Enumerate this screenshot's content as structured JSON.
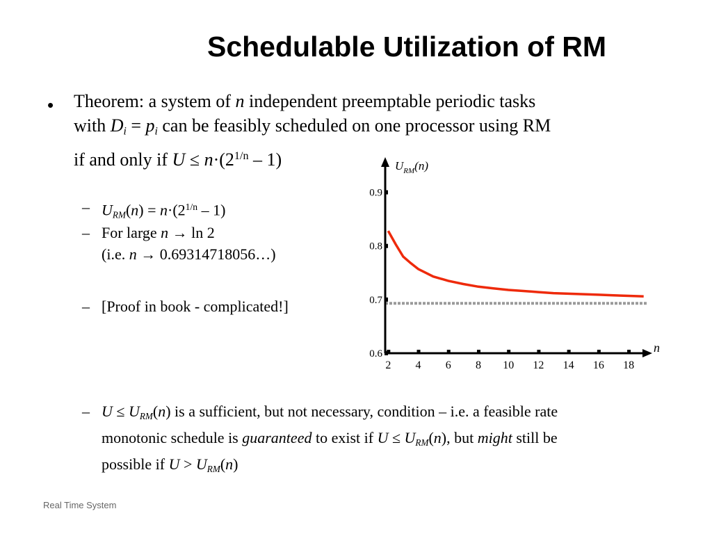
{
  "slide": {
    "title": "Schedulable Utilization of RM",
    "footer": "Real Time System"
  },
  "theorem": {
    "t1": "Theorem: a system of ",
    "n": "n",
    "t2": " independent preemptable periodic tasks",
    "t3": "with ",
    "d": "D",
    "i1": "i",
    "eq": " = ",
    "p": "p",
    "i2": "i",
    "t4": " can be feasibly scheduled on one processor using RM",
    "t5": "if and only if ",
    "u": "U",
    "t6": " ≤ ",
    "n2": "n",
    "t7": "·(2",
    "exp": "1/n",
    "t8": " – 1)"
  },
  "items": {
    "formula": {
      "u": "U",
      "sub": "RM",
      "a": "(",
      "n": "n",
      "b": ") = ",
      "n2": "n",
      "c": "·(2",
      "exp": "1/n",
      "d": " – 1)"
    },
    "large": {
      "a": "For large ",
      "n": "n",
      "b": " → ln 2"
    },
    "large2": {
      "a": "(i.e. ",
      "n": "n",
      "b": " → 0.69314718056…)"
    },
    "proof": "[Proof in book - complicated!]",
    "sufficient": {
      "u1": "U",
      "a": " ≤ ",
      "u2": "U",
      "s1": "RM",
      "b": "(",
      "n1": "n",
      "c": ") is a sufficient, but not necessary, condition – i.e. a feasible rate",
      "d": "monotonic schedule is ",
      "g": "guaranteed",
      "e": " to exist if ",
      "u3": "U",
      "f": " ≤ ",
      "u4": "U",
      "s2": "RM",
      "h": "(",
      "n2": "n",
      "i": "), but ",
      "m": "might",
      "j": " still be",
      "k": "possible if ",
      "u5": "U",
      "l": " > ",
      "u6": "U",
      "s3": "RM",
      "o": "(",
      "n3": "n",
      "p": ")"
    }
  },
  "chart_data": {
    "type": "line",
    "ylabel_main": "U",
    "ylabel_sub": "RM",
    "ylabel_tail": "(n)",
    "xlabel": "n",
    "x_ticks": [
      "2",
      "4",
      "6",
      "8",
      "10",
      "12",
      "14",
      "16",
      "18"
    ],
    "y_ticks": [
      "0.6",
      "0.7",
      "0.8",
      "0.9"
    ],
    "xlim": [
      1.8,
      19.2
    ],
    "ylim": [
      0.6,
      0.95
    ],
    "series": [
      {
        "color": "#ee2a0b",
        "style": "solid",
        "x": [
          2,
          2.5,
          3,
          3.5,
          4,
          5,
          6,
          7,
          8,
          9,
          10,
          11,
          12,
          13,
          14,
          15,
          16,
          17,
          18,
          19
        ],
        "y": [
          0.828,
          0.803,
          0.78,
          0.768,
          0.757,
          0.743,
          0.735,
          0.729,
          0.724,
          0.721,
          0.718,
          0.716,
          0.714,
          0.712,
          0.711,
          0.71,
          0.709,
          0.708,
          0.707,
          0.706
        ]
      },
      {
        "color": "#9a9a9a",
        "style": "dotted",
        "x": [
          1.8,
          19.2
        ],
        "y": [
          0.693,
          0.693
        ]
      }
    ]
  }
}
